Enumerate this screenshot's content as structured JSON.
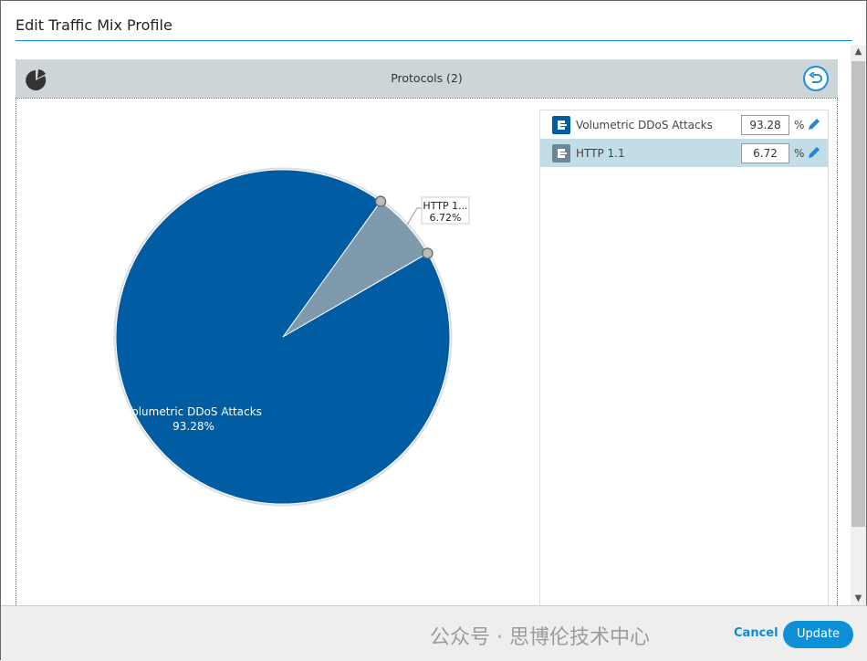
{
  "dialog": {
    "title": "Edit Traffic Mix Profile"
  },
  "panel": {
    "title": "Protocols (2)",
    "pie_icon": "pie-chart-icon",
    "back_icon": "undo-icon"
  },
  "chart_data": {
    "type": "pie",
    "slices": [
      {
        "label": "Volumetric DDoS Attacks",
        "value": 93.28,
        "value_label": "93.28%",
        "color": "#005ca3"
      },
      {
        "label": "HTTP 1.1",
        "short_label": "HTTP 1...",
        "value": 6.72,
        "value_label": "6.72%",
        "color": "#7f9aad"
      }
    ]
  },
  "protocols": [
    {
      "name": "Volumetric DDoS Attacks",
      "value": "93.28",
      "unit": "%",
      "icon_color": "#005ca3",
      "selected": false
    },
    {
      "name": "HTTP 1.1",
      "value": "6.72",
      "unit": "%",
      "icon_color": "#6d8797",
      "selected": true
    }
  ],
  "footer": {
    "cancel": "Cancel",
    "update": "Update"
  },
  "watermark": "公众号 · 思博伦技术中心",
  "colors": {
    "accent": "#0d90d8"
  }
}
